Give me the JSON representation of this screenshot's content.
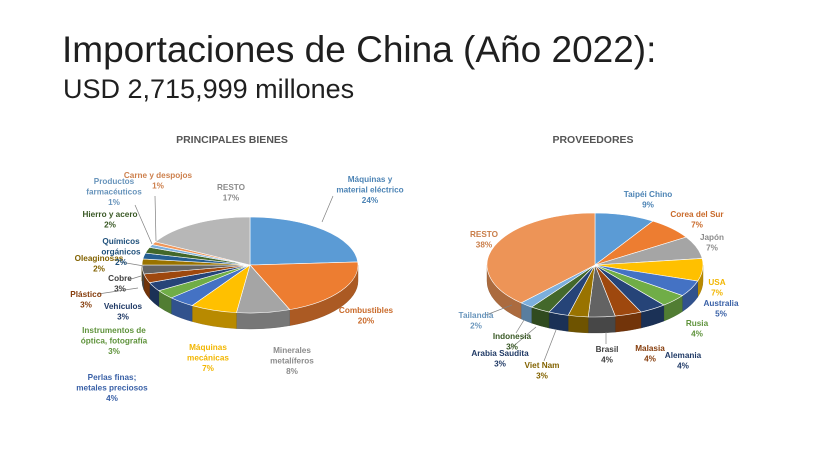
{
  "slide": {
    "title": "Importaciones de China (Año 2022):",
    "subtitle": "USD 2,715,999 millones"
  },
  "chart_data": [
    {
      "type": "pie",
      "title": "PRINCIPALES BIENES",
      "slices": [
        {
          "label": [
            "Máquinas y",
            "material eléctrico"
          ],
          "value": 24,
          "value_label": "24%",
          "color": "#5b9bd5"
        },
        {
          "label": [
            "Combustibles"
          ],
          "value": 20,
          "value_label": "20%",
          "color": "#ed7d31"
        },
        {
          "label": [
            "Minerales",
            "metalíferos"
          ],
          "value": 8,
          "value_label": "8%",
          "color": "#a5a5a5"
        },
        {
          "label": [
            "Máquinas",
            "mecánicas"
          ],
          "value": 7,
          "value_label": "7%",
          "color": "#ffc000"
        },
        {
          "label": [
            "Perlas finas;",
            "metales preciosos"
          ],
          "value": 4,
          "value_label": "4%",
          "color": "#4472c4"
        },
        {
          "label": [
            "Instrumentos de",
            "óptica, fotografía"
          ],
          "value": 3,
          "value_label": "3%",
          "color": "#70ad47"
        },
        {
          "label": [
            "Vehículos"
          ],
          "value": 3,
          "value_label": "3%",
          "color": "#264478"
        },
        {
          "label": [
            "Plástico"
          ],
          "value": 3,
          "value_label": "3%",
          "color": "#9e480e"
        },
        {
          "label": [
            "Cobre"
          ],
          "value": 3,
          "value_label": "3%",
          "color": "#636363"
        },
        {
          "label": [
            "Oleaginosas"
          ],
          "value": 2,
          "value_label": "2%",
          "color": "#997300"
        },
        {
          "label": [
            "Químicos",
            "orgánicos"
          ],
          "value": 2,
          "value_label": "2%",
          "color": "#255e91"
        },
        {
          "label": [
            "Hierro y acero"
          ],
          "value": 2,
          "value_label": "2%",
          "color": "#43682b"
        },
        {
          "label": [
            "Productos",
            "farmacéuticos"
          ],
          "value": 1,
          "value_label": "1%",
          "color": "#7cafdd"
        },
        {
          "label": [
            "Carne y despojos"
          ],
          "value": 1,
          "value_label": "1%",
          "color": "#f1975a"
        },
        {
          "label": [
            "RESTO"
          ],
          "value": 17,
          "value_label": "17%",
          "color": "#b7b7b7"
        }
      ]
    },
    {
      "type": "pie",
      "title": "PROVEEDORES",
      "slices": [
        {
          "label": [
            "Taipéi Chino"
          ],
          "value": 9,
          "value_label": "9%",
          "color": "#5b9bd5"
        },
        {
          "label": [
            "Corea del Sur"
          ],
          "value": 7,
          "value_label": "7%",
          "color": "#ed7d31"
        },
        {
          "label": [
            "Japón"
          ],
          "value": 7,
          "value_label": "7%",
          "color": "#a5a5a5"
        },
        {
          "label": [
            "USA"
          ],
          "value": 7,
          "value_label": "7%",
          "color": "#ffc000"
        },
        {
          "label": [
            "Australia"
          ],
          "value": 5,
          "value_label": "5%",
          "color": "#4472c4"
        },
        {
          "label": [
            "Rusia"
          ],
          "value": 4,
          "value_label": "4%",
          "color": "#70ad47"
        },
        {
          "label": [
            "Alemania"
          ],
          "value": 4,
          "value_label": "4%",
          "color": "#264478"
        },
        {
          "label": [
            "Malasia"
          ],
          "value": 4,
          "value_label": "4%",
          "color": "#9e480e"
        },
        {
          "label": [
            "Brasil"
          ],
          "value": 4,
          "value_label": "4%",
          "color": "#636363"
        },
        {
          "label": [
            "Viet Nam"
          ],
          "value": 3,
          "value_label": "3%",
          "color": "#997300"
        },
        {
          "label": [
            "Arabia Saudita"
          ],
          "value": 3,
          "value_label": "3%",
          "color": "#264478"
        },
        {
          "label": [
            "Indonesia"
          ],
          "value": 3,
          "value_label": "3%",
          "color": "#43682b"
        },
        {
          "label": [
            "Tailandia"
          ],
          "value": 2,
          "value_label": "2%",
          "color": "#7cafdd"
        },
        {
          "label": [
            "RESTO"
          ],
          "value": 38,
          "value_label": "38%",
          "color": "#ed9457"
        }
      ]
    }
  ]
}
